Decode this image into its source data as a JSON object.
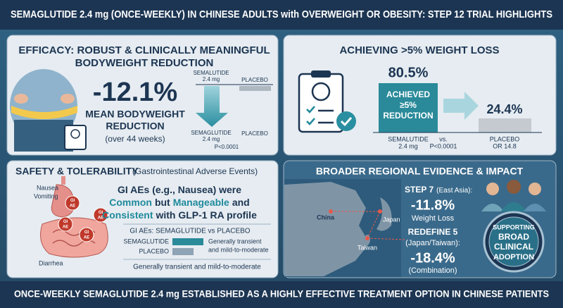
{
  "header": {
    "title": "SEMAGLUTIDE 2.4 mg (ONCE-WEEKLY) IN CHINESE ADULTS with OVERWEIGHT OR OBESITY: STEP 12 TRIAL HIGHLIGHTS"
  },
  "efficacy": {
    "title": [
      "EFFICACY: ROBUST & CLINICALLY MEANINGFUL",
      "BODYWEIGHT REDUCTION"
    ],
    "headline": "-12.1%",
    "caption": [
      "MEAN BODYWEIGHT",
      "REDUCTION"
    ],
    "period": "(over 44 weeks)",
    "chart": {
      "top_semaglutide": [
        "SEMALUTIDE",
        "2.4 mg"
      ],
      "top_placebo": "PLACEBO",
      "bottom_semaglutide": [
        "SEMAGLUTIDE",
        "2.4 mg"
      ],
      "bottom_placebo": "PLACEBO",
      "p_value": "P<0.0001"
    }
  },
  "response": {
    "title": "ACHIEVING >5% WEIGHT LOSS",
    "semaglutide_value": "80.5%",
    "bar_text": [
      "ACHIEVED",
      "≥5%",
      "REDUCTION"
    ],
    "placebo_value": "24.4%",
    "semaglutide_label": [
      "SEMALUTIDE",
      "2.4 mg"
    ],
    "vs": "vs.",
    "p_value": "P<0.0001",
    "placebo_label": [
      "PLACEBO",
      "OR 14.8"
    ]
  },
  "safety": {
    "title": "SAFETY & TOLERABILITY",
    "subtitle": "(Gastrointestinal Adverse Events)",
    "symptoms": [
      "Nausea",
      "Vomiting",
      "Diarrhea"
    ],
    "badge": [
      "GI",
      "AE"
    ],
    "summary": [
      [
        "GI AEs (e.g., Nausea) were"
      ],
      [
        "Common",
        "but",
        "Manageable",
        "and"
      ],
      [
        "Consistent",
        "with GLP-1 RA profile"
      ]
    ],
    "chart_title": "GI AEs: SEMAGLUTIDE vs PLACEBO",
    "semaglutide": "SEMAGLUTIDE",
    "placebo": "PLACEBO",
    "callout": [
      "Generally transient",
      "and mild-to-moderate"
    ],
    "footnote": "Generally transient and mild-to-moderate"
  },
  "regional": {
    "title": "BROADER REGIONAL EVIDENCE & IMPACT",
    "map_labels": [
      "China",
      "Japan",
      "Taiwan"
    ],
    "step7": {
      "name": "STEP 7",
      "region": "(East Asia):",
      "value": "-11.8%",
      "label": "Weight Loss"
    },
    "redefine5": {
      "name": "REDEFINE 5",
      "region": "(Japan/Taiwan):",
      "value": "-18.4%",
      "label": "(Combination)"
    },
    "badge": [
      "SUPPORTING",
      "BROAD",
      "CLINICAL",
      "ADOPTION"
    ]
  },
  "footer": {
    "text": "ONCE-WEEKLY SEMAGLUTIDE 2.4 mg ESTABLISHED AS A HIGHLY EFFECTIVE TREATMENT OPTION IN CHINESE PATIENTS"
  }
}
